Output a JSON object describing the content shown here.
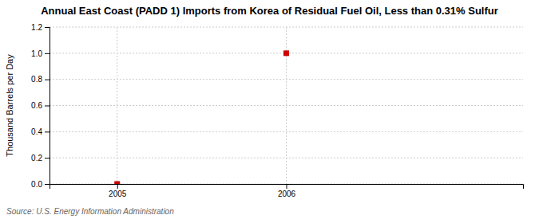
{
  "chart_data": {
    "type": "scatter",
    "title": "Annual East Coast (PADD 1) Imports from Korea of Residual Fuel Oil, Less than 0.31% Sulfur",
    "ylabel": "Thousand Barrels per Day",
    "source": "Source: U.S. Energy Information Administration",
    "x": [
      2005,
      2006
    ],
    "values": [
      0.0,
      1.0
    ],
    "color": "#cc0000",
    "marker": "square",
    "xlim": [
      2004.6,
      2007.4
    ],
    "ylim": [
      0.0,
      1.2
    ],
    "xticks": [
      2005,
      2006
    ],
    "yticks": [
      {
        "value": 0.0,
        "label": "0.0"
      },
      0.2,
      0.4,
      0.6,
      0.8,
      {
        "value": 1.0,
        "label": "1.0"
      },
      1.2
    ],
    "grid": true
  }
}
